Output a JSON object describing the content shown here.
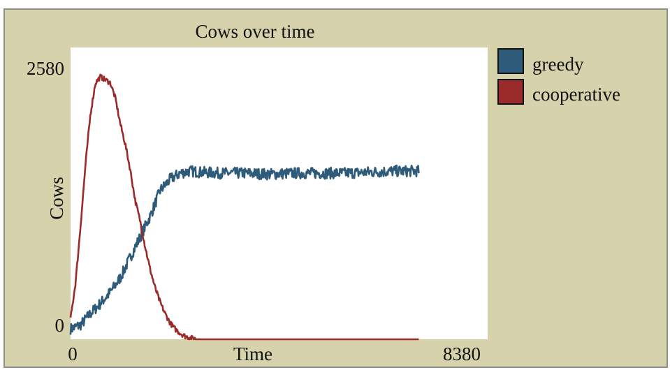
{
  "chart_data": {
    "type": "line",
    "title": "Cows over time",
    "xlabel": "Time",
    "ylabel": "Cows",
    "xlim": [
      0,
      8380
    ],
    "ylim": [
      0,
      2580
    ],
    "x_tick_labels": [
      "0",
      "8380"
    ],
    "y_tick_labels": [
      "0",
      "2580"
    ],
    "grid": false,
    "legend_position": "right",
    "series": [
      {
        "name": "greedy",
        "color": "#2e5b7a",
        "noise": 55,
        "x": [
          0,
          200,
          400,
          600,
          800,
          1000,
          1200,
          1400,
          1600,
          1800,
          2000,
          2200,
          2400,
          2600,
          3000,
          3500,
          4000,
          4500,
          5000,
          5500,
          6000,
          6500,
          7000
        ],
        "y": [
          100,
          140,
          250,
          350,
          460,
          600,
          800,
          1000,
          1200,
          1450,
          1560,
          1620,
          1640,
          1630,
          1620,
          1620,
          1610,
          1620,
          1620,
          1620,
          1630,
          1640,
          1640
        ]
      },
      {
        "name": "cooperative",
        "color": "#9b2a2a",
        "noise": 25,
        "x": [
          0,
          100,
          200,
          300,
          400,
          500,
          600,
          700,
          800,
          900,
          1000,
          1100,
          1200,
          1300,
          1400,
          1500,
          1600,
          1700,
          1800,
          1900,
          2000,
          2100,
          2200,
          2300,
          2400,
          2500,
          2600,
          2700,
          2800,
          3000,
          5000,
          7000
        ],
        "y": [
          200,
          550,
          1100,
          1700,
          2200,
          2500,
          2560,
          2530,
          2500,
          2350,
          2100,
          1900,
          1650,
          1350,
          1150,
          900,
          680,
          500,
          360,
          250,
          160,
          100,
          60,
          30,
          15,
          5,
          0,
          0,
          0,
          0,
          0,
          0
        ]
      }
    ]
  }
}
